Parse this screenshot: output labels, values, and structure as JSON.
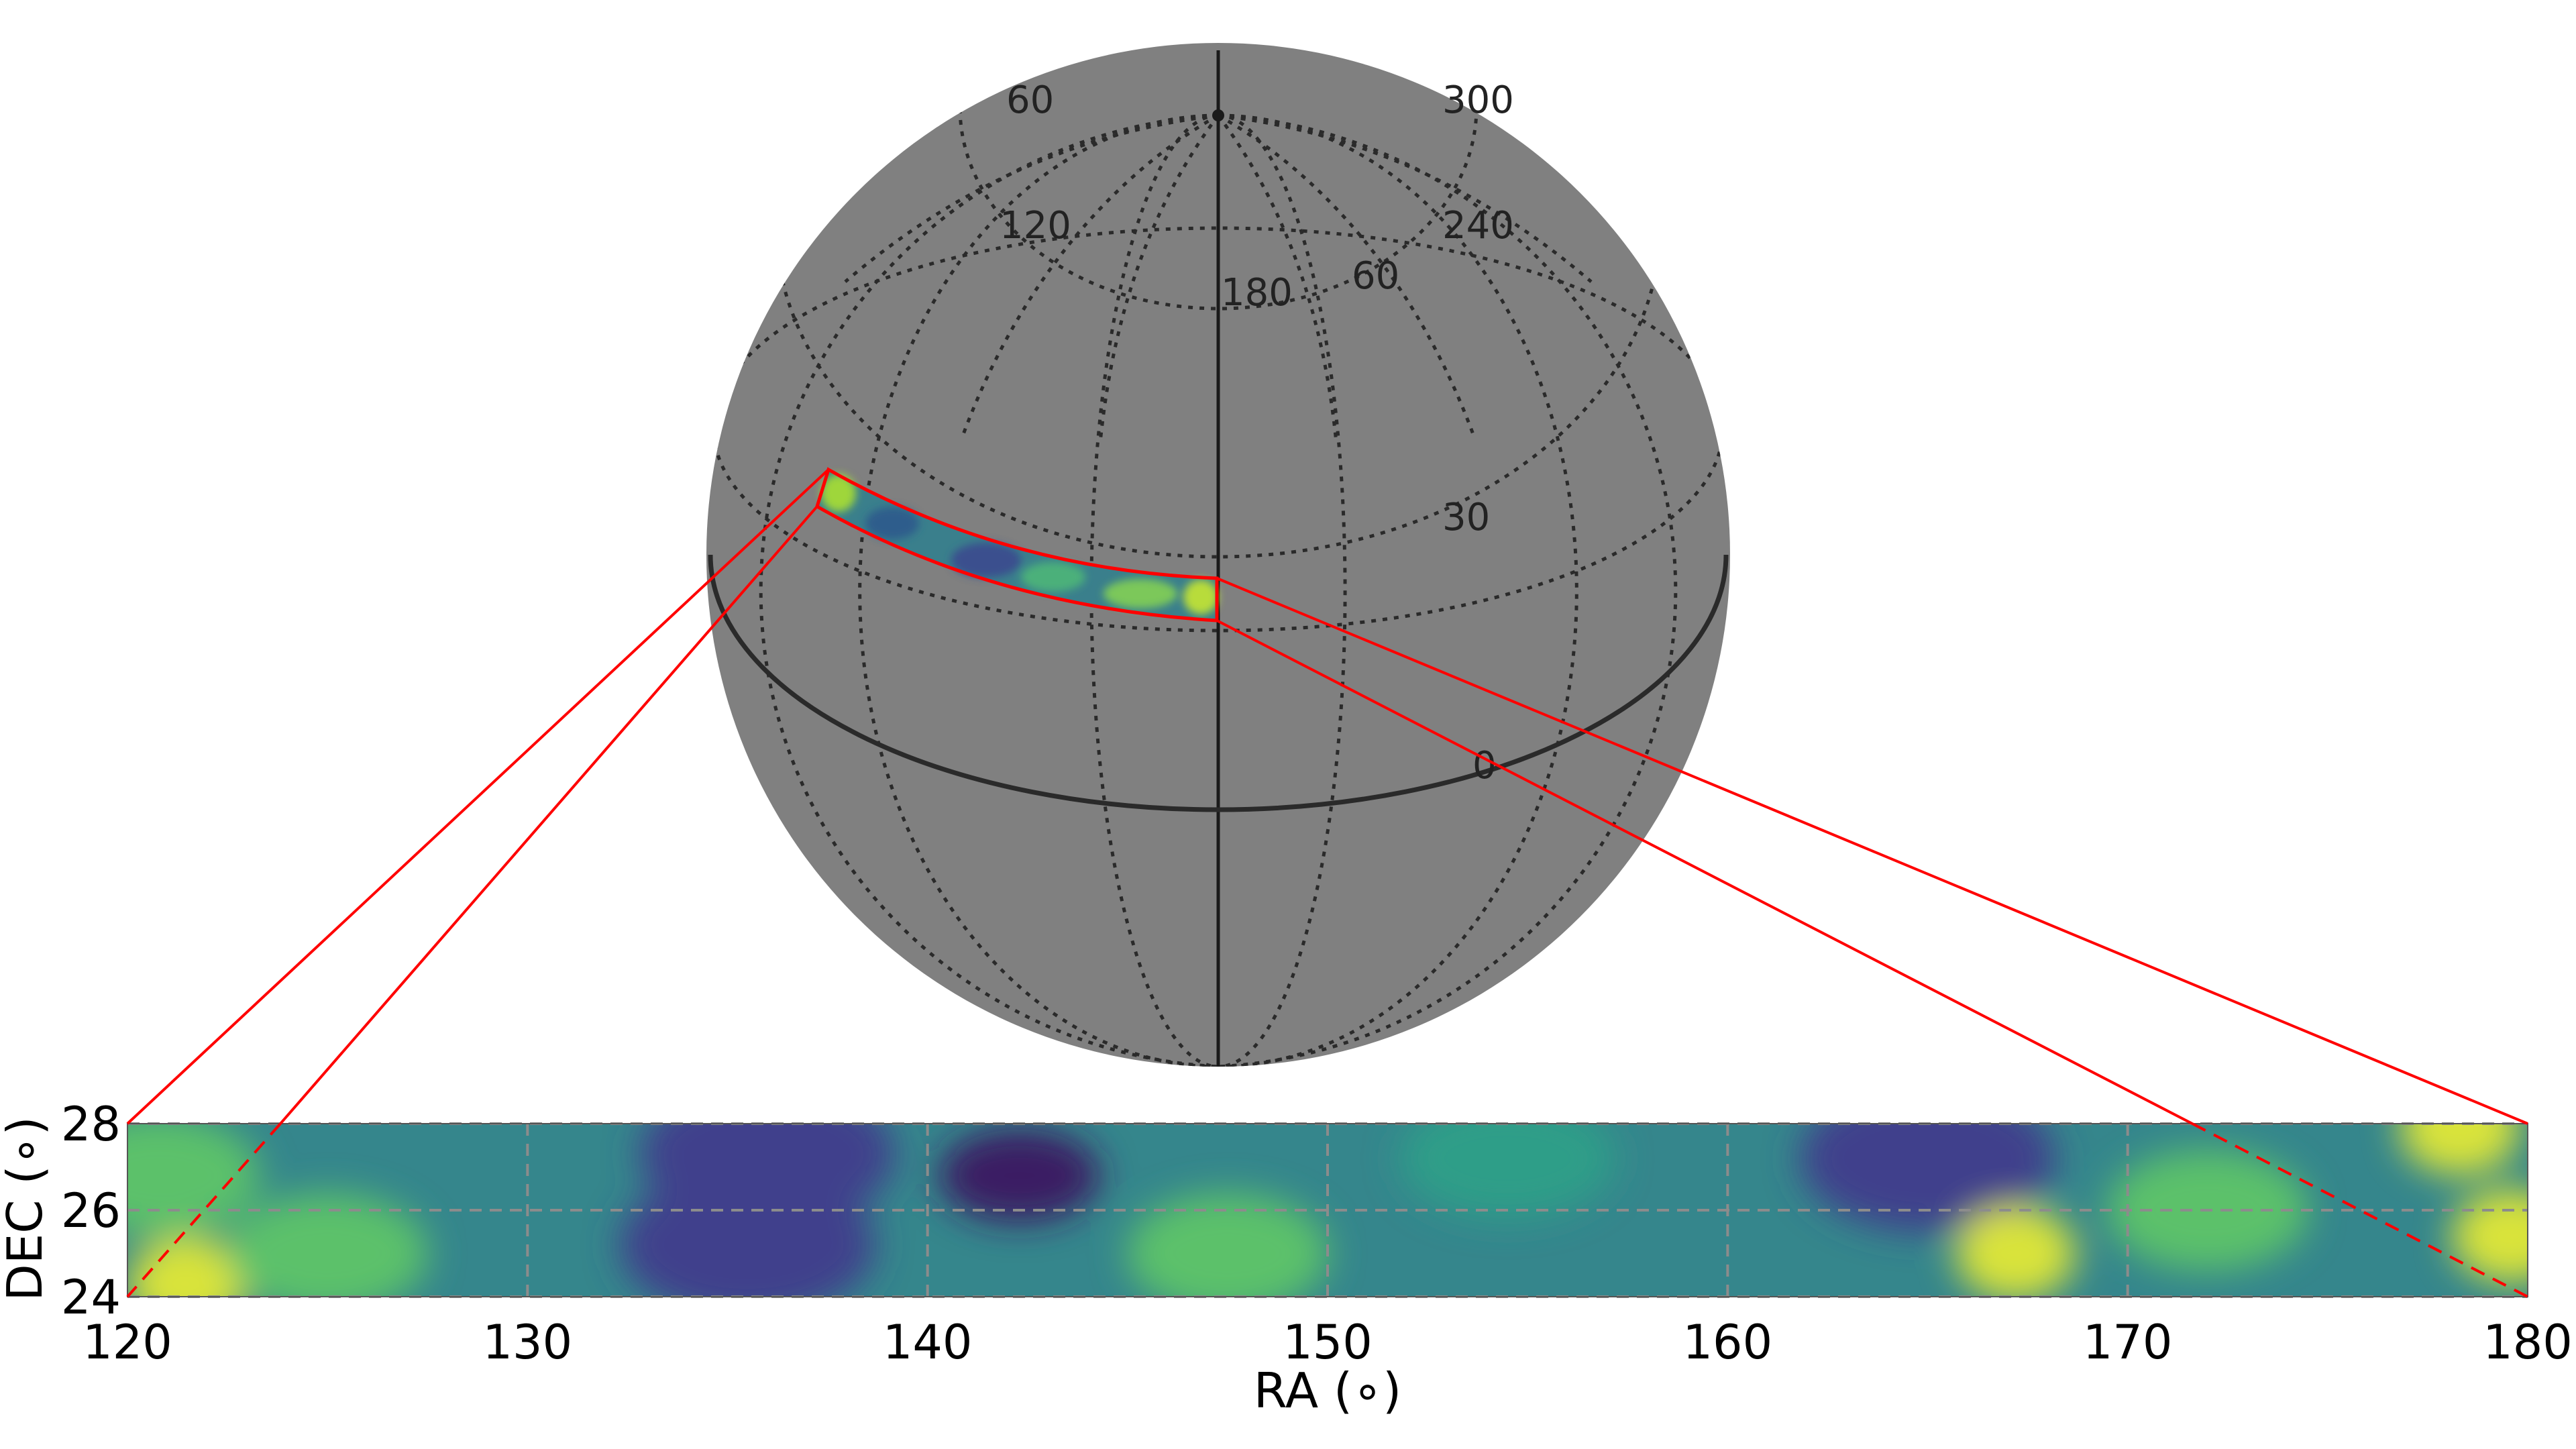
{
  "sphere": {
    "meridian_labels": [
      {
        "text": "60",
        "ref": "lon60"
      },
      {
        "text": "300",
        "ref": "lon300"
      },
      {
        "text": "120",
        "ref": "lon120"
      },
      {
        "text": "240",
        "ref": "lon240"
      },
      {
        "text": "180",
        "ref": "lon180"
      }
    ],
    "latitude_labels": [
      {
        "text": "60",
        "ref": "lat60"
      },
      {
        "text": "30",
        "ref": "lat30"
      },
      {
        "text": "0",
        "ref": "lat0"
      }
    ],
    "colors": {
      "globe": "#808080",
      "grid": "#2a2a2a",
      "highlight": "#ff0000"
    }
  },
  "chart_data": {
    "type": "heatmap",
    "title": "",
    "xlabel": "RA (∘)",
    "ylabel": "DEC (∘)",
    "xlim": [
      120,
      180
    ],
    "ylim": [
      24,
      28
    ],
    "x_ticks": [
      120,
      130,
      140,
      150,
      160,
      170,
      180
    ],
    "y_ticks": [
      24,
      26,
      28
    ],
    "grid": true,
    "colormap": "viridis",
    "features": [
      {
        "ra": 121.5,
        "dec": 24.3,
        "level": "high"
      },
      {
        "ra": 120.8,
        "dec": 26.8,
        "level": "medium-high"
      },
      {
        "ra": 125,
        "dec": 25,
        "level": "medium-high"
      },
      {
        "ra": 135.5,
        "dec": 25.2,
        "level": "low"
      },
      {
        "ra": 136,
        "dec": 27.3,
        "level": "low"
      },
      {
        "ra": 142.3,
        "dec": 26.8,
        "level": "lowest"
      },
      {
        "ra": 147.5,
        "dec": 25,
        "level": "medium-high"
      },
      {
        "ra": 154.5,
        "dec": 27.2,
        "level": "medium"
      },
      {
        "ra": 165,
        "dec": 27.2,
        "level": "low"
      },
      {
        "ra": 167.2,
        "dec": 25,
        "level": "high"
      },
      {
        "ra": 172,
        "dec": 26,
        "level": "medium-high"
      },
      {
        "ra": 178.3,
        "dec": 27.9,
        "level": "high"
      },
      {
        "ra": 179.6,
        "dec": 25.4,
        "level": "high"
      }
    ]
  }
}
